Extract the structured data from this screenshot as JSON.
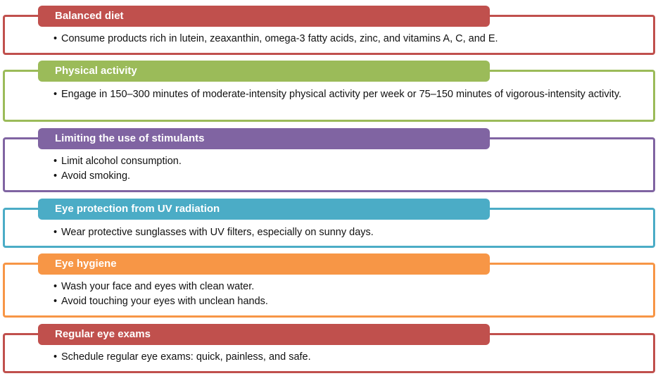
{
  "sections": [
    {
      "title": "Balanced diet",
      "color": "#C0504D",
      "bullets": [
        "Consume products rich in lutein, zeaxanthin, omega-3 fatty acids, zinc, and vitamins A, C, and E."
      ]
    },
    {
      "title": "Physical activity",
      "color": "#9BBB59",
      "bullets": [
        "Engage in 150–300 minutes of moderate-intensity physical activity per week or 75–150 minutes of vigorous-intensity activity."
      ]
    },
    {
      "title": "Limiting the use of stimulants",
      "color": "#8064A2",
      "bullets": [
        "Limit alcohol consumption.",
        "Avoid smoking."
      ]
    },
    {
      "title": "Eye protection from UV radiation",
      "color": "#4BACC6",
      "bullets": [
        "Wear protective sunglasses with UV filters, especially on sunny days."
      ]
    },
    {
      "title": "Eye hygiene",
      "color": "#F79646",
      "bullets": [
        "Wash your face and eyes with clean water.",
        "Avoid touching your eyes with unclean hands."
      ]
    },
    {
      "title": "Regular eye exams",
      "color": "#C0504D",
      "bullets": [
        "Schedule regular eye exams: quick, painless, and safe."
      ]
    }
  ]
}
